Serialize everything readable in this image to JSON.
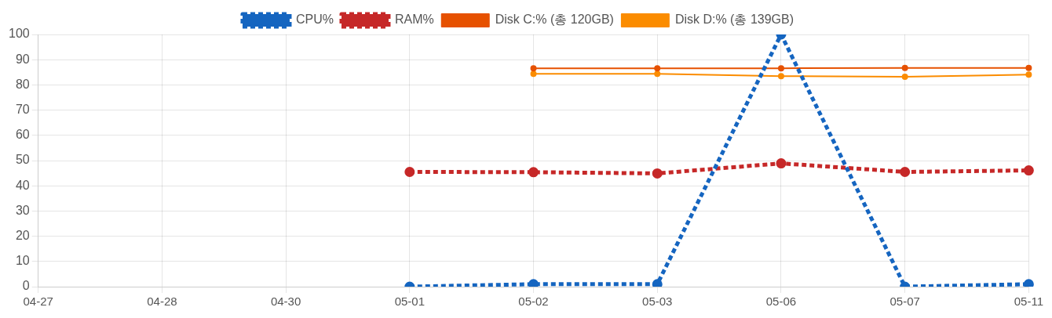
{
  "chart_data": {
    "type": "line",
    "categories": [
      "04-27",
      "04-28",
      "04-30",
      "05-01",
      "05-02",
      "05-03",
      "05-06",
      "05-07",
      "05-11"
    ],
    "series": [
      {
        "name": "CPU%",
        "color": "#1565c0",
        "line_style": "dashed",
        "marker": "circle",
        "values": [
          null,
          null,
          null,
          0,
          1,
          1,
          100,
          0,
          1
        ]
      },
      {
        "name": "RAM%",
        "color": "#c62828",
        "line_style": "dashed",
        "marker": "circle",
        "values": [
          null,
          null,
          null,
          45.5,
          45.4,
          44.9,
          48.9,
          45.5,
          46.1
        ]
      },
      {
        "name": "Disk C:% (총 120GB)",
        "color": "#e65100",
        "line_style": "solid",
        "marker": "circle",
        "values": [
          null,
          null,
          null,
          null,
          86.6,
          86.6,
          86.6,
          86.7,
          86.7
        ]
      },
      {
        "name": "Disk D:% (총 139GB)",
        "color": "#fb8c00",
        "line_style": "solid",
        "marker": "circle",
        "values": [
          null,
          null,
          null,
          null,
          84.4,
          84.4,
          83.5,
          83.2,
          84.1
        ]
      }
    ],
    "ylim": [
      0,
      100
    ],
    "yticks": [
      0,
      10,
      20,
      30,
      40,
      50,
      60,
      70,
      80,
      90,
      100
    ],
    "grid": true,
    "legend": "top"
  }
}
